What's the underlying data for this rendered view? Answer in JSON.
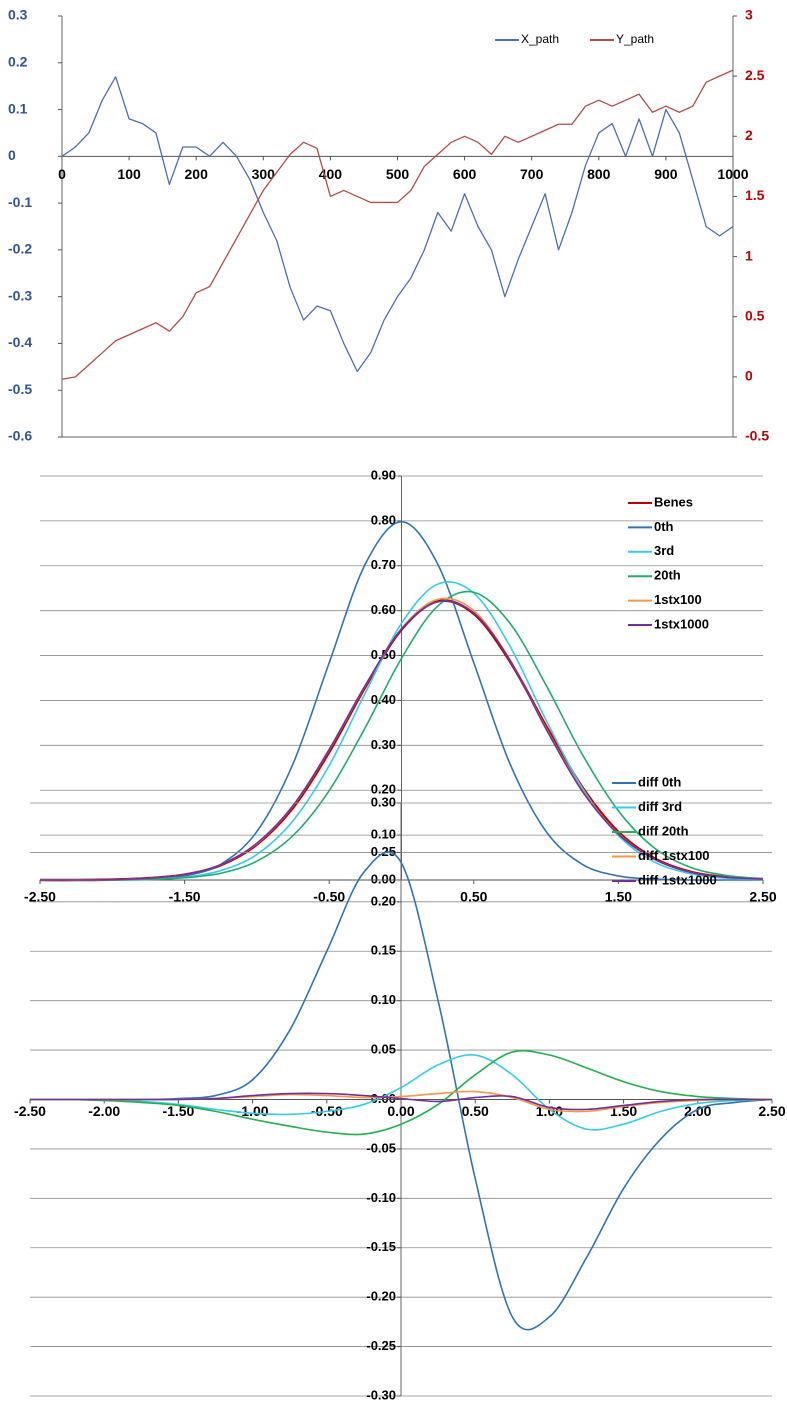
{
  "chart_data": [
    {
      "type": "line",
      "x": [
        0,
        20,
        40,
        60,
        80,
        100,
        120,
        140,
        160,
        180,
        200,
        220,
        240,
        260,
        280,
        300,
        320,
        340,
        360,
        380,
        400,
        420,
        440,
        460,
        480,
        500,
        520,
        540,
        560,
        580,
        600,
        620,
        640,
        660,
        680,
        700,
        720,
        740,
        760,
        780,
        800,
        820,
        840,
        860,
        880,
        900,
        920,
        940,
        960,
        980,
        1000
      ],
      "xlim": [
        0,
        1000
      ],
      "xticks": [
        0,
        100,
        200,
        300,
        400,
        500,
        600,
        700,
        800,
        900,
        1000
      ],
      "ylim": [
        -0.6,
        0.3
      ],
      "yticks": [
        -0.6,
        -0.5,
        -0.4,
        -0.3,
        -0.2,
        -0.1,
        0,
        0.1,
        0.2,
        0.3
      ],
      "y2lim": [
        -0.5,
        3
      ],
      "y2ticks": [
        -0.5,
        0,
        0.5,
        1,
        1.5,
        2,
        2.5,
        3
      ],
      "legend": "top",
      "series": [
        {
          "name": "X_path",
          "color": "#4a6fb8",
          "values": [
            0,
            0.02,
            0.05,
            0.12,
            0.17,
            0.08,
            0.07,
            0.05,
            -0.06,
            0.02,
            0.02,
            0,
            0.03,
            0,
            -0.05,
            -0.12,
            -0.18,
            -0.28,
            -0.35,
            -0.32,
            -0.33,
            -0.4,
            -0.46,
            -0.42,
            -0.35,
            -0.3,
            -0.26,
            -0.2,
            -0.12,
            -0.16,
            -0.08,
            -0.15,
            -0.2,
            -0.3,
            -0.22,
            -0.15,
            -0.08,
            -0.2,
            -0.12,
            -0.02,
            0.05,
            0.07,
            0,
            0.08,
            0,
            0.1,
            0.05,
            -0.05,
            -0.15,
            -0.17,
            -0.15
          ]
        },
        {
          "name": "Y_path",
          "color": "#b84a47",
          "axis": "y2",
          "values": [
            -0.02,
            0,
            0.1,
            0.2,
            0.3,
            0.35,
            0.4,
            0.45,
            0.38,
            0.5,
            0.7,
            0.75,
            0.95,
            1.15,
            1.35,
            1.55,
            1.7,
            1.85,
            1.95,
            1.9,
            1.5,
            1.55,
            1.5,
            1.45,
            1.45,
            1.45,
            1.55,
            1.75,
            1.85,
            1.95,
            2,
            1.95,
            1.85,
            2,
            1.95,
            2,
            2.05,
            2.1,
            2.1,
            2.25,
            2.3,
            2.25,
            2.3,
            2.35,
            2.2,
            2.25,
            2.2,
            2.25,
            2.45,
            2.5,
            2.55
          ]
        }
      ]
    },
    {
      "type": "line",
      "smooth": true,
      "grid": true,
      "legend": "right",
      "x": [
        -2.5,
        -2.25,
        -2,
        -1.75,
        -1.5,
        -1.25,
        -1,
        -0.75,
        -0.5,
        -0.25,
        0,
        0.25,
        0.5,
        0.75,
        1,
        1.25,
        1.5,
        1.75,
        2,
        2.25,
        2.5
      ],
      "xlim": [
        -2.5,
        2.5
      ],
      "xticks": [
        {
          "value": -2.5,
          "label": "-2.50"
        },
        {
          "value": -1.5,
          "label": "-1.50"
        },
        {
          "value": -0.5,
          "label": "-0.50"
        },
        {
          "value": 0.5,
          "label": "0.50"
        },
        {
          "value": 1.5,
          "label": "1.50"
        },
        {
          "value": 2.5,
          "label": "2.50"
        }
      ],
      "ylim": [
        0,
        0.9
      ],
      "yticks": [
        {
          "value": 0,
          "label": "0.00"
        },
        {
          "value": 0.1,
          "label": "0.10"
        },
        {
          "value": 0.2,
          "label": "0.20"
        },
        {
          "value": 0.3,
          "label": "0.30"
        },
        {
          "value": 0.4,
          "label": "0.40"
        },
        {
          "value": 0.5,
          "label": "0.50"
        },
        {
          "value": 0.6,
          "label": "0.60"
        },
        {
          "value": 0.7,
          "label": "0.70"
        },
        {
          "value": 0.8,
          "label": "0.80"
        },
        {
          "value": 0.9,
          "label": "0.90"
        }
      ],
      "series": [
        {
          "name": "Benes",
          "color": "#c00000",
          "values": [
            0,
            0,
            0.001,
            0.004,
            0.012,
            0.033,
            0.079,
            0.161,
            0.285,
            0.43,
            0.558,
            0.621,
            0.593,
            0.487,
            0.343,
            0.207,
            0.107,
            0.048,
            0.018,
            0.006,
            0.002
          ]
        },
        {
          "name": "0th",
          "color": "#2e75b6",
          "values": [
            0,
            0,
            0,
            0.002,
            0.009,
            0.035,
            0.108,
            0.259,
            0.484,
            0.704,
            0.798,
            0.704,
            0.484,
            0.259,
            0.108,
            0.035,
            0.009,
            0.002,
            0,
            0,
            0
          ]
        },
        {
          "name": "3rd",
          "color": "#33ccee",
          "values": [
            0,
            0,
            0,
            0.002,
            0.006,
            0.021,
            0.057,
            0.132,
            0.255,
            0.417,
            0.572,
            0.659,
            0.639,
            0.521,
            0.356,
            0.205,
            0.099,
            0.04,
            0.014,
            0.004,
            0.001
          ]
        },
        {
          "name": "20th",
          "color": "#1fae6a",
          "values": [
            0,
            0,
            0,
            0.001,
            0.005,
            0.015,
            0.042,
            0.099,
            0.199,
            0.34,
            0.494,
            0.61,
            0.641,
            0.572,
            0.434,
            0.28,
            0.154,
            0.071,
            0.028,
            0.01,
            0.003
          ]
        },
        {
          "name": "1stx100",
          "color": "#f79646",
          "values": [
            0,
            0,
            0.001,
            0.004,
            0.012,
            0.034,
            0.081,
            0.165,
            0.29,
            0.433,
            0.56,
            0.625,
            0.6,
            0.49,
            0.338,
            0.2,
            0.103,
            0.046,
            0.017,
            0.006,
            0.002
          ]
        },
        {
          "name": "1stx1000",
          "color": "#7030a0",
          "values": [
            0,
            0,
            0.001,
            0.004,
            0.012,
            0.034,
            0.082,
            0.166,
            0.291,
            0.434,
            0.559,
            0.62,
            0.595,
            0.49,
            0.336,
            0.198,
            0.102,
            0.046,
            0.017,
            0.006,
            0.002
          ]
        }
      ]
    },
    {
      "type": "line",
      "smooth": true,
      "grid": true,
      "legend": "right",
      "x": [
        -2.5,
        -2.25,
        -2,
        -1.75,
        -1.5,
        -1.25,
        -1,
        -0.75,
        -0.5,
        -0.25,
        0,
        0.25,
        0.5,
        0.75,
        1,
        1.25,
        1.5,
        1.75,
        2,
        2.25,
        2.5
      ],
      "xlim": [
        -2.5,
        2.5
      ],
      "xticks": [
        {
          "value": -2.5,
          "label": "-2.50"
        },
        {
          "value": -2,
          "label": "-2.00"
        },
        {
          "value": -1.5,
          "label": "-1.50"
        },
        {
          "value": -1,
          "label": "-1.00"
        },
        {
          "value": -0.5,
          "label": "-0.50"
        },
        {
          "value": 0,
          "label": "0.00"
        },
        {
          "value": 0.5,
          "label": "0.50"
        },
        {
          "value": 1,
          "label": "1.00"
        },
        {
          "value": 1.5,
          "label": "1.50"
        },
        {
          "value": 2,
          "label": "2.00"
        },
        {
          "value": 2.5,
          "label": "2.50"
        }
      ],
      "ylim": [
        -0.3,
        0.3
      ],
      "yticks": [
        {
          "value": -0.3,
          "label": "-0.30"
        },
        {
          "value": -0.25,
          "label": "-0.25"
        },
        {
          "value": -0.2,
          "label": "-0.20"
        },
        {
          "value": -0.15,
          "label": "-0.15"
        },
        {
          "value": -0.1,
          "label": "-0.10"
        },
        {
          "value": -0.05,
          "label": "-0.05"
        },
        {
          "value": 0,
          "label": "0.00"
        },
        {
          "value": 0.05,
          "label": "0.05"
        },
        {
          "value": 0.1,
          "label": "0.10"
        },
        {
          "value": 0.15,
          "label": "0.15"
        },
        {
          "value": 0.2,
          "label": "0.20"
        },
        {
          "value": 0.25,
          "label": "0.25"
        },
        {
          "value": 0.3,
          "label": "0.30"
        }
      ],
      "series": [
        {
          "name": "diff 0th",
          "color": "#2e75b6",
          "values": [
            0,
            0,
            0,
            0,
            0.001,
            0.004,
            0.02,
            0.07,
            0.15,
            0.23,
            0.24,
            0.1,
            -0.08,
            -0.22,
            -0.22,
            -0.16,
            -0.09,
            -0.04,
            -0.01,
            -0.003,
            0
          ]
        },
        {
          "name": "diff 3rd",
          "color": "#33ccee",
          "values": [
            0,
            0,
            -0.001,
            -0.002,
            -0.005,
            -0.01,
            -0.014,
            -0.015,
            -0.012,
            -0.005,
            0.012,
            0.035,
            0.045,
            0.025,
            -0.01,
            -0.03,
            -0.025,
            -0.012,
            -0.004,
            -0.001,
            0
          ]
        },
        {
          "name": "diff 20th",
          "color": "#22b14c",
          "values": [
            0,
            0,
            -0.001,
            -0.003,
            -0.006,
            -0.012,
            -0.02,
            -0.027,
            -0.033,
            -0.035,
            -0.025,
            -0.005,
            0.025,
            0.048,
            0.045,
            0.032,
            0.018,
            0.008,
            0.003,
            0.001,
            0
          ]
        },
        {
          "name": "diff 1stx100",
          "color": "#f79646",
          "values": [
            0,
            0,
            0,
            0,
            0,
            0.001,
            0.003,
            0.005,
            0.004,
            0.002,
            0.003,
            0.006,
            0.008,
            0.002,
            -0.01,
            -0.012,
            -0.007,
            -0.003,
            -0.001,
            0,
            0
          ]
        },
        {
          "name": "diff 1stx1000",
          "color": "#7030a0",
          "values": [
            0,
            0,
            0,
            0,
            0,
            0.001,
            0.004,
            0.006,
            0.006,
            0.004,
            0.001,
            -0.002,
            0.002,
            0.003,
            -0.008,
            -0.01,
            -0.006,
            -0.002,
            0,
            0,
            0
          ]
        }
      ]
    }
  ]
}
